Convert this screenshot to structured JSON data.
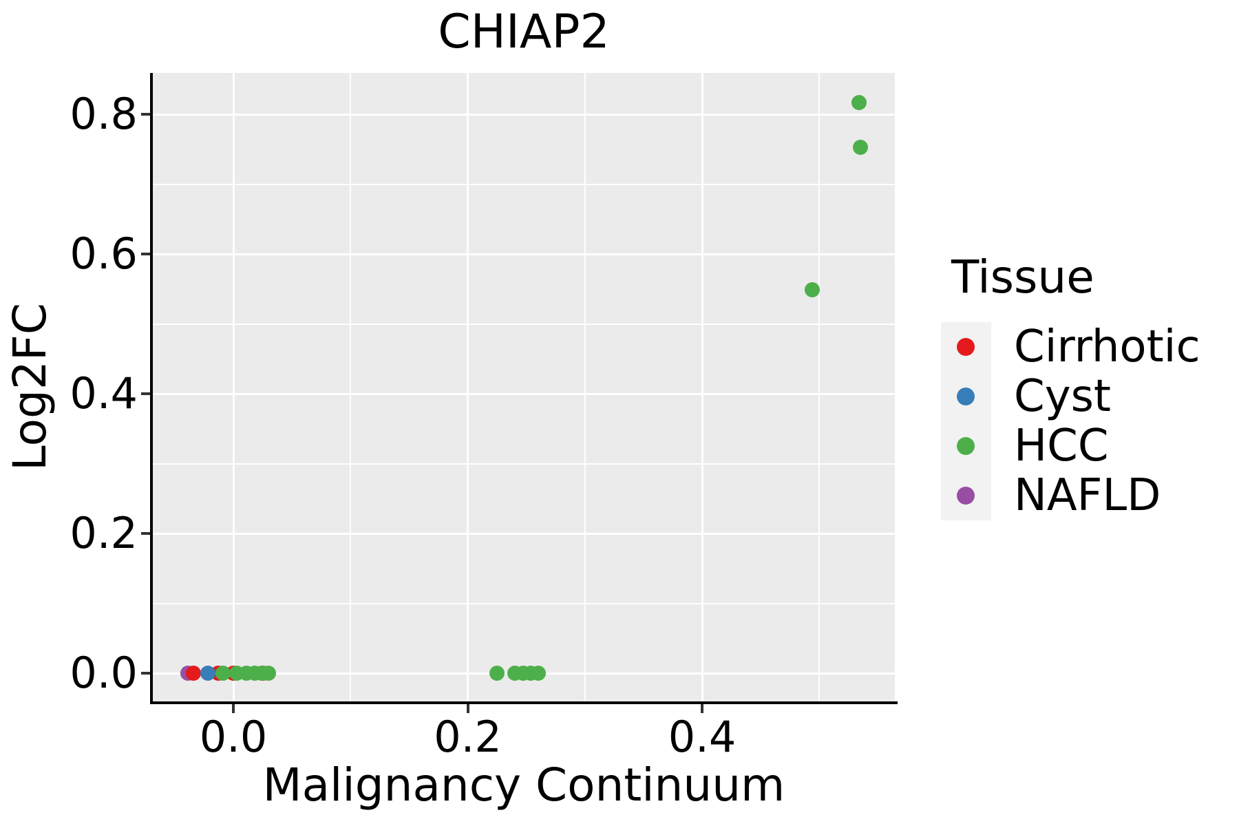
{
  "chart_data": {
    "type": "scatter",
    "title": "CHIAP2",
    "xlabel": "Malignancy Continuum",
    "ylabel": "Log2FC",
    "xlim": [
      -0.069,
      0.565
    ],
    "ylim": [
      -0.04,
      0.859
    ],
    "grid": true,
    "panel_background": "#EBEBEB",
    "gridline_color": "#FFFFFF",
    "x_ticks": [
      {
        "value": 0.0,
        "label": "0.0"
      },
      {
        "value": 0.2,
        "label": "0.2"
      },
      {
        "value": 0.4,
        "label": "0.4"
      }
    ],
    "y_ticks": [
      {
        "value": 0.0,
        "label": "0.0"
      },
      {
        "value": 0.2,
        "label": "0.2"
      },
      {
        "value": 0.4,
        "label": "0.4"
      },
      {
        "value": 0.6,
        "label": "0.6"
      },
      {
        "value": 0.8,
        "label": "0.8"
      }
    ],
    "x_minor_gridlines": [
      0.1,
      0.3,
      0.5
    ],
    "y_minor_gridlines": [
      0.1,
      0.3,
      0.5,
      0.7
    ],
    "legend": {
      "title": "Tissue",
      "position": "right",
      "entries": [
        {
          "label": "Cirrhotic",
          "color": "#E41A1C"
        },
        {
          "label": "Cyst",
          "color": "#377EB8"
        },
        {
          "label": "HCC",
          "color": "#4DAF4A"
        },
        {
          "label": "NAFLD",
          "color": "#984EA3"
        }
      ]
    },
    "palette": {
      "Cirrhotic": "#E41A1C",
      "Cyst": "#377EB8",
      "HCC": "#4DAF4A",
      "NAFLD": "#984EA3"
    },
    "points": [
      {
        "tissue": "NAFLD",
        "x": -0.039,
        "y": 0.0
      },
      {
        "tissue": "Cirrhotic",
        "x": -0.034,
        "y": 0.0
      },
      {
        "tissue": "Cirrhotic",
        "x": -0.013,
        "y": 0.0
      },
      {
        "tissue": "Cyst",
        "x": -0.022,
        "y": 0.0
      },
      {
        "tissue": "Cirrhotic",
        "x": 0.0,
        "y": 0.0
      },
      {
        "tissue": "Cirrhotic",
        "x": 0.025,
        "y": 0.0
      },
      {
        "tissue": "HCC",
        "x": -0.009,
        "y": 0.0
      },
      {
        "tissue": "HCC",
        "x": 0.003,
        "y": 0.0
      },
      {
        "tissue": "HCC",
        "x": 0.011,
        "y": 0.0
      },
      {
        "tissue": "HCC",
        "x": 0.018,
        "y": 0.0
      },
      {
        "tissue": "HCC",
        "x": 0.024,
        "y": 0.0
      },
      {
        "tissue": "HCC",
        "x": 0.03,
        "y": 0.0
      },
      {
        "tissue": "HCC",
        "x": 0.225,
        "y": 0.0
      },
      {
        "tissue": "HCC",
        "x": 0.24,
        "y": 0.0
      },
      {
        "tissue": "HCC",
        "x": 0.247,
        "y": 0.0
      },
      {
        "tissue": "HCC",
        "x": 0.254,
        "y": 0.0
      },
      {
        "tissue": "HCC",
        "x": 0.26,
        "y": 0.0
      },
      {
        "tissue": "HCC",
        "x": 0.494,
        "y": 0.549
      },
      {
        "tissue": "HCC",
        "x": 0.535,
        "y": 0.753
      },
      {
        "tissue": "HCC",
        "x": 0.534,
        "y": 0.817
      }
    ]
  }
}
